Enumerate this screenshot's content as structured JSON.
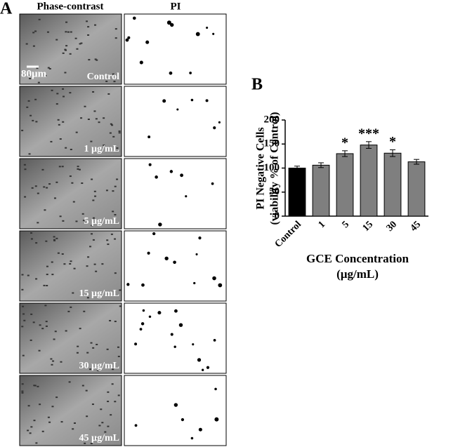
{
  "panel_a": {
    "label": "A",
    "columns": [
      "Phase-contrast",
      "PI"
    ],
    "scale_bar": "80µm",
    "rows": [
      "Control",
      "1 µg/mL",
      "5 µg/mL",
      "15 µg/mL",
      "30 µg/mL",
      "45 µg/mL"
    ]
  },
  "chart_data": {
    "type": "bar",
    "panel_label": "B",
    "ylabel": [
      "PI Negative Cells",
      "(viability % of Control)"
    ],
    "xlabel": [
      "GCE Concentration",
      "(µg/mL)"
    ],
    "categories": [
      "Control",
      "1",
      "5",
      "15",
      "30",
      "45"
    ],
    "values": [
      100,
      106,
      130,
      148,
      131,
      113
    ],
    "errors": [
      4,
      5,
      6,
      7,
      7,
      5
    ],
    "annotations": [
      null,
      null,
      "*",
      "***",
      "*",
      null
    ],
    "colors": [
      "#000000",
      "#7f7f7f",
      "#7f7f7f",
      "#7f7f7f",
      "#7f7f7f",
      "#7f7f7f"
    ],
    "ylim": [
      0,
      200
    ],
    "yticks": [
      0,
      50,
      100,
      150,
      200
    ]
  }
}
